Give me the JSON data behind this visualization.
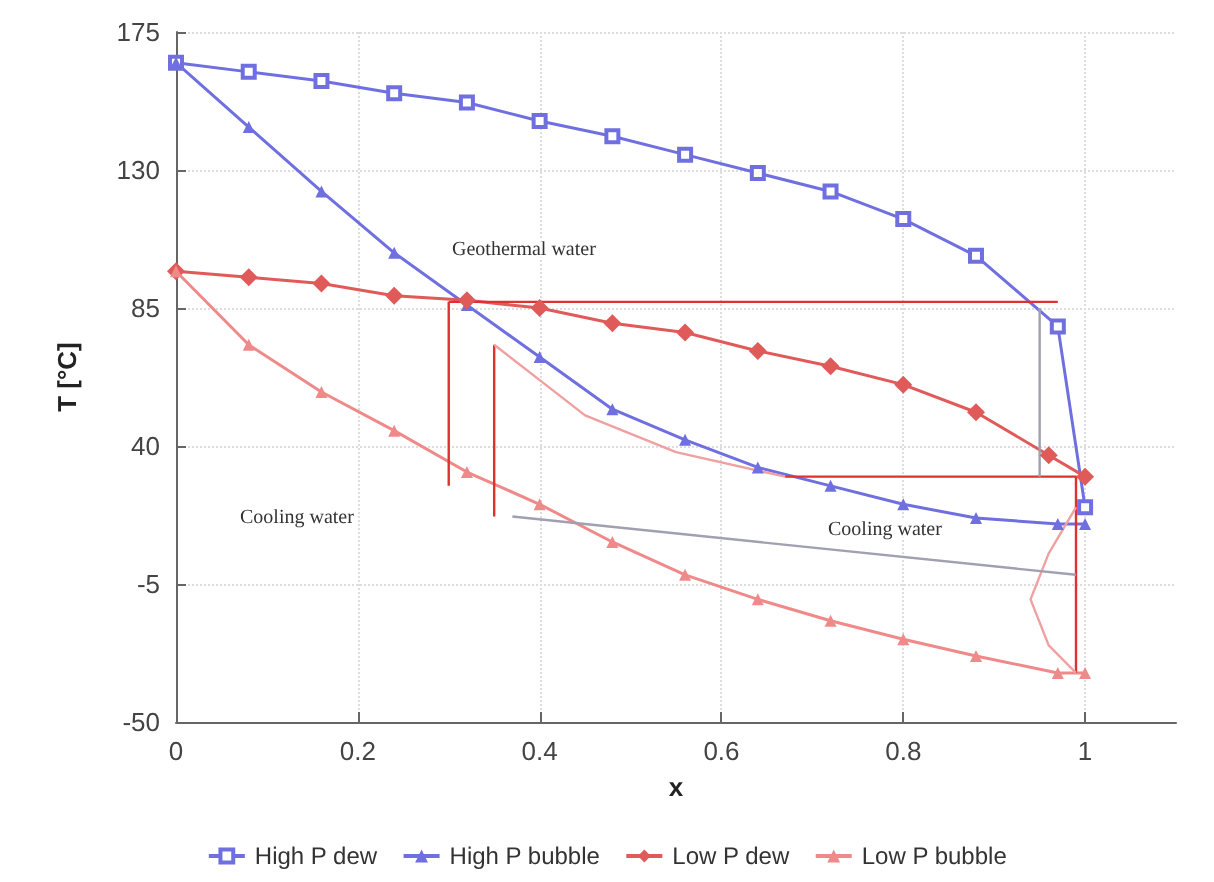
{
  "chart_data": {
    "type": "line",
    "xlabel": "x",
    "ylabel": "T [°C]",
    "xlim": [
      0,
      1.1
    ],
    "xticks": [
      0,
      {
        "value": 0.2,
        "label": "0.2"
      },
      {
        "value": 0.4,
        "label": "0.4"
      },
      {
        "value": 0.6,
        "label": "0.6"
      },
      {
        "value": 0.8,
        "label": "0.8"
      },
      1
    ],
    "ylim": [
      -50,
      175
    ],
    "yticks": [
      -50,
      -5,
      40,
      85,
      130,
      175
    ],
    "grid": true,
    "legend": "bottom",
    "line_style": "solid",
    "series": [
      {
        "name": "High P dew",
        "color": "#6f6fe0",
        "marker": "square",
        "x": [
          0,
          0.08,
          0.16,
          0.24,
          0.32,
          0.4,
          0.48,
          0.56,
          0.64,
          0.72,
          0.8,
          0.88,
          0.97,
          1
        ],
        "values": [
          165,
          162,
          159,
          155,
          152,
          146,
          141,
          135,
          129,
          123,
          114,
          102,
          79,
          20
        ]
      },
      {
        "name": "High P bubble",
        "color": "#6f6fe0",
        "marker": "triangle",
        "x": [
          0,
          0.08,
          0.16,
          0.24,
          0.32,
          0.4,
          0.48,
          0.56,
          0.64,
          0.72,
          0.8,
          0.88,
          0.97,
          1
        ],
        "values": [
          165,
          144,
          123,
          103,
          86,
          69,
          52,
          42,
          33,
          27,
          21,
          16.5,
          14.6,
          14.6
        ]
      },
      {
        "name": "Low P dew",
        "color": "#e05a5a",
        "marker": "diamond",
        "x": [
          0,
          0.08,
          0.16,
          0.24,
          0.32,
          0.4,
          0.48,
          0.56,
          0.64,
          0.72,
          0.8,
          0.88,
          0.96,
          1
        ],
        "values": [
          97,
          95,
          93,
          89,
          87.5,
          85,
          80,
          77,
          71,
          66,
          60,
          51,
          37,
          30
        ]
      },
      {
        "name": "Low P bubble",
        "color": "#f08a8a",
        "marker": "triangle",
        "x": [
          0,
          0.08,
          0.16,
          0.24,
          0.32,
          0.4,
          0.48,
          0.56,
          0.64,
          0.72,
          0.8,
          0.88,
          0.97,
          1
        ],
        "values": [
          97,
          73,
          57.6,
          45,
          31.5,
          21,
          8.7,
          -2,
          -10,
          -17,
          -23,
          -28.5,
          -34,
          -34
        ]
      },
      {
        "color": "#e03030",
        "marker": "none",
        "x": [
          0.3,
          0.97,
          null,
          0.3,
          0.3,
          null,
          0.35,
          0.35,
          null,
          0.67,
          0.99,
          0.99
        ],
        "values": [
          87,
          87,
          null,
          87,
          27,
          null,
          73,
          17,
          null,
          30,
          30,
          -34
        ]
      },
      {
        "color": "#f0a0a0",
        "marker": "none",
        "x": [
          0.35,
          0.45,
          0.55,
          0.67,
          null,
          0.99,
          0.96,
          0.94,
          0.96,
          0.99
        ],
        "values": [
          73,
          50,
          38,
          30,
          null,
          20,
          5,
          -10,
          -25,
          -34
        ]
      },
      {
        "color": "#a0a0b0",
        "marker": "none",
        "x": [
          0.37,
          0.99,
          null,
          0.95,
          0.95
        ],
        "values": [
          17,
          -2,
          null,
          85,
          30
        ]
      }
    ],
    "annotations": [
      "Geothermal water",
      "Cooling water",
      "Cooling water"
    ]
  }
}
